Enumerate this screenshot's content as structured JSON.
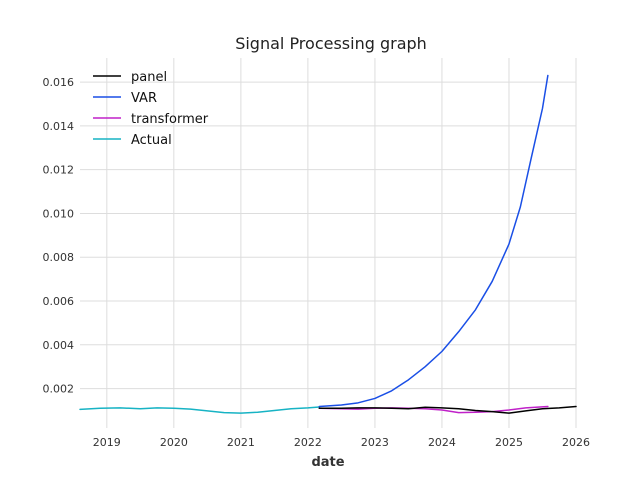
{
  "chart_data": {
    "type": "line",
    "title": "Signal Processing graph",
    "xlabel": "date",
    "ylabel": "",
    "xlim": [
      2018.6,
      2026.0
    ],
    "ylim": [
      0.0002,
      0.0171
    ],
    "x_ticks": [
      2019,
      2020,
      2021,
      2022,
      2023,
      2024,
      2025,
      2026
    ],
    "x_tick_labels": [
      "2019",
      "2020",
      "2021",
      "2022",
      "2023",
      "2024",
      "2025",
      "2026"
    ],
    "y_ticks": [
      0.002,
      0.004,
      0.006,
      0.008,
      0.01,
      0.012,
      0.014,
      0.016
    ],
    "y_tick_labels": [
      "0.002",
      "0.004",
      "0.006",
      "0.008",
      "0.010",
      "0.012",
      "0.014",
      "0.016"
    ],
    "grid": true,
    "legend_position": "top-left",
    "series": [
      {
        "name": "panel",
        "color": "#000000",
        "points": [
          [
            2022.17,
            0.0011
          ],
          [
            2022.5,
            0.0011
          ],
          [
            2022.75,
            0.00112
          ],
          [
            2023.0,
            0.00112
          ],
          [
            2023.25,
            0.0011
          ],
          [
            2023.5,
            0.00108
          ],
          [
            2023.75,
            0.00115
          ],
          [
            2024.0,
            0.00112
          ],
          [
            2024.25,
            0.00108
          ],
          [
            2024.5,
            0.001
          ],
          [
            2024.75,
            0.00095
          ],
          [
            2025.0,
            0.00088
          ],
          [
            2025.25,
            0.00098
          ],
          [
            2025.5,
            0.00108
          ],
          [
            2025.75,
            0.00112
          ],
          [
            2026.0,
            0.00118
          ]
        ]
      },
      {
        "name": "VAR",
        "color": "#1a4fe6",
        "points": [
          [
            2022.17,
            0.00118
          ],
          [
            2022.5,
            0.00125
          ],
          [
            2022.75,
            0.00135
          ],
          [
            2023.0,
            0.00155
          ],
          [
            2023.25,
            0.0019
          ],
          [
            2023.5,
            0.0024
          ],
          [
            2023.75,
            0.003
          ],
          [
            2024.0,
            0.0037
          ],
          [
            2024.25,
            0.0046
          ],
          [
            2024.5,
            0.0056
          ],
          [
            2024.75,
            0.0069
          ],
          [
            2025.0,
            0.0086
          ],
          [
            2025.17,
            0.0103
          ],
          [
            2025.33,
            0.0125
          ],
          [
            2025.5,
            0.0148
          ],
          [
            2025.58,
            0.0163
          ]
        ]
      },
      {
        "name": "transformer",
        "color": "#c021c9",
        "points": [
          [
            2022.17,
            0.0011
          ],
          [
            2022.5,
            0.00108
          ],
          [
            2022.75,
            0.00106
          ],
          [
            2023.0,
            0.0011
          ],
          [
            2023.25,
            0.00112
          ],
          [
            2023.5,
            0.0011
          ],
          [
            2023.75,
            0.00108
          ],
          [
            2024.0,
            0.00102
          ],
          [
            2024.25,
            0.0009
          ],
          [
            2024.5,
            0.00092
          ],
          [
            2024.75,
            0.00095
          ],
          [
            2025.0,
            0.00102
          ],
          [
            2025.25,
            0.00112
          ],
          [
            2025.4,
            0.00115
          ],
          [
            2025.58,
            0.00118
          ]
        ]
      },
      {
        "name": "Actual",
        "color": "#17b3c4",
        "points": [
          [
            2018.6,
            0.00105
          ],
          [
            2018.9,
            0.0011
          ],
          [
            2019.2,
            0.00112
          ],
          [
            2019.5,
            0.00108
          ],
          [
            2019.75,
            0.00112
          ],
          [
            2020.0,
            0.0011
          ],
          [
            2020.25,
            0.00106
          ],
          [
            2020.5,
            0.00098
          ],
          [
            2020.75,
            0.0009
          ],
          [
            2021.0,
            0.00088
          ],
          [
            2021.25,
            0.00092
          ],
          [
            2021.5,
            0.001
          ],
          [
            2021.75,
            0.00108
          ],
          [
            2022.0,
            0.00112
          ],
          [
            2022.17,
            0.00116
          ]
        ]
      }
    ]
  }
}
